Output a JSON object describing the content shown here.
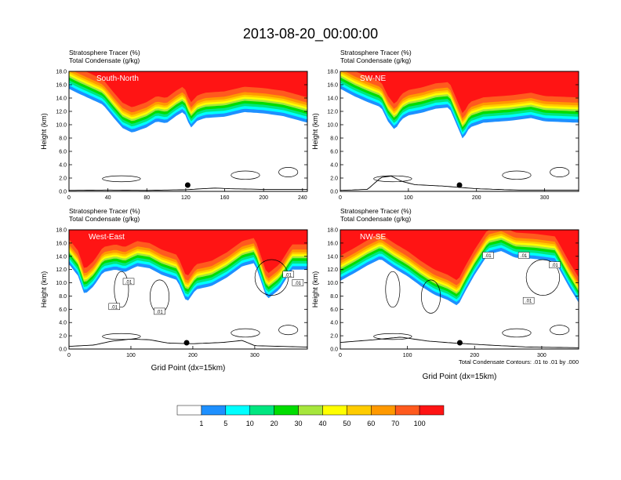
{
  "figure": {
    "title": "2013-08-20_00:00:00",
    "contour_note": "Total Condensate Contours: .01 to .01 by .000"
  },
  "colorbar": {
    "colors": [
      "#ffffff",
      "#1e90ff",
      "#00ffff",
      "#00e680",
      "#00dd00",
      "#a6e63c",
      "#ffff00",
      "#ffcc00",
      "#ff9900",
      "#ff5a1e",
      "#ff1414"
    ],
    "labels": [
      "1",
      "5",
      "10",
      "20",
      "30",
      "40",
      "50",
      "60",
      "70",
      "100"
    ]
  },
  "chart_data": [
    {
      "type": "heatmap",
      "panel": "South-North",
      "label": "South-North",
      "subtitle1": "Stratosphere Tracer   (%)",
      "subtitle2": "Total Condensate   (g/kg)",
      "ylabel": "Height (km)",
      "xlabel": "",
      "xlim": [
        0,
        245
      ],
      "ylim": [
        0,
        18
      ],
      "xticks": [
        0,
        40,
        80,
        120,
        160,
        200,
        240
      ],
      "yticks": [
        "0.0",
        "2.0",
        "4.0",
        "6.0",
        "8.0",
        "10.0",
        "12.0",
        "14.0",
        "16.0",
        "18.0"
      ],
      "tracer_base_km": [
        [
          0,
          15.4
        ],
        [
          8,
          14.8
        ],
        [
          20,
          14.0
        ],
        [
          35,
          13.0
        ],
        [
          45,
          11.2
        ],
        [
          55,
          9.5
        ],
        [
          65,
          8.8
        ],
        [
          80,
          9.6
        ],
        [
          90,
          10.5
        ],
        [
          100,
          10.2
        ],
        [
          110,
          11.3
        ],
        [
          118,
          12.0
        ],
        [
          125,
          9.5
        ],
        [
          132,
          10.6
        ],
        [
          140,
          11.0
        ],
        [
          160,
          11.2
        ],
        [
          180,
          11.9
        ],
        [
          200,
          11.7
        ],
        [
          220,
          11.3
        ],
        [
          245,
          10.3
        ]
      ],
      "terrain_km": [
        [
          0,
          0.15
        ],
        [
          40,
          0.2
        ],
        [
          80,
          0.15
        ],
        [
          120,
          0.25
        ],
        [
          150,
          0.5
        ],
        [
          165,
          0.4
        ],
        [
          200,
          0.3
        ],
        [
          245,
          0.3
        ]
      ],
      "marker_x": 122
    },
    {
      "type": "heatmap",
      "panel": "SW-NE",
      "label": "SW-NE",
      "subtitle1": "Stratosphere Tracer   (%)",
      "subtitle2": "Total Condensate   (g/kg)",
      "ylabel": "Height (km)",
      "xlabel": "",
      "xlim": [
        0,
        350
      ],
      "ylim": [
        0,
        18
      ],
      "xticks": [
        0,
        100,
        200,
        300
      ],
      "yticks": [
        "0.0",
        "2.0",
        "4.0",
        "6.0",
        "8.0",
        "10.0",
        "12.0",
        "14.0",
        "16.0",
        "18.0"
      ],
      "tracer_base_km": [
        [
          0,
          15.4
        ],
        [
          20,
          14.3
        ],
        [
          40,
          13.4
        ],
        [
          60,
          12.6
        ],
        [
          70,
          10.5
        ],
        [
          80,
          9.2
        ],
        [
          90,
          10.8
        ],
        [
          100,
          11.4
        ],
        [
          120,
          11.8
        ],
        [
          140,
          12.4
        ],
        [
          160,
          12.6
        ],
        [
          170,
          10.2
        ],
        [
          180,
          7.8
        ],
        [
          190,
          9.6
        ],
        [
          210,
          10.3
        ],
        [
          250,
          10.6
        ],
        [
          280,
          11.0
        ],
        [
          300,
          10.5
        ],
        [
          350,
          10.3
        ]
      ],
      "terrain_km": [
        [
          0,
          0.15
        ],
        [
          40,
          0.3
        ],
        [
          60,
          2.1
        ],
        [
          75,
          2.3
        ],
        [
          90,
          1.5
        ],
        [
          110,
          1.0
        ],
        [
          150,
          0.8
        ],
        [
          200,
          0.4
        ],
        [
          260,
          0.2
        ],
        [
          350,
          0.2
        ]
      ],
      "marker_x": 175
    },
    {
      "type": "heatmap",
      "panel": "West-East",
      "label": "West-East",
      "subtitle1": "Stratosphere Tracer   (%)",
      "subtitle2": "Total Condensate   (g/kg)",
      "ylabel": "Height (km)",
      "xlabel": "Grid Point (dx=15km)",
      "xlim": [
        0,
        385
      ],
      "ylim": [
        0,
        18
      ],
      "xticks": [
        0,
        100,
        200,
        300
      ],
      "yticks": [
        "0.0",
        "2.0",
        "4.0",
        "6.0",
        "8.0",
        "10.0",
        "12.0",
        "14.0",
        "16.0",
        "18.0"
      ],
      "contour_labels": [
        ".01",
        ".01",
        ".01",
        ".01",
        ".01"
      ],
      "tracer_base_km": [
        [
          0,
          12.8
        ],
        [
          15,
          11.0
        ],
        [
          25,
          8.2
        ],
        [
          40,
          9.5
        ],
        [
          55,
          11.6
        ],
        [
          75,
          12.0
        ],
        [
          90,
          11.6
        ],
        [
          110,
          12.5
        ],
        [
          130,
          12.2
        ],
        [
          150,
          11.2
        ],
        [
          175,
          10.4
        ],
        [
          190,
          7.0
        ],
        [
          205,
          9.0
        ],
        [
          230,
          9.5
        ],
        [
          255,
          10.8
        ],
        [
          280,
          12.5
        ],
        [
          300,
          13.0
        ],
        [
          320,
          7.5
        ],
        [
          340,
          9.0
        ],
        [
          360,
          12.0
        ],
        [
          385,
          12.0
        ]
      ],
      "terrain_km": [
        [
          0,
          0.4
        ],
        [
          40,
          0.6
        ],
        [
          70,
          1.2
        ],
        [
          100,
          1.5
        ],
        [
          130,
          1.4
        ],
        [
          160,
          0.9
        ],
        [
          200,
          0.8
        ],
        [
          250,
          1.0
        ],
        [
          280,
          1.3
        ],
        [
          300,
          0.5
        ],
        [
          385,
          0.3
        ]
      ],
      "marker_x": 190
    },
    {
      "type": "heatmap",
      "panel": "NW-SE",
      "label": "NW-SE",
      "subtitle1": "Stratosphere Tracer   (%)",
      "subtitle2": "Total Condensate   (g/kg)",
      "ylabel": "Height (km)",
      "xlabel": "Grid Point (dx=15km)",
      "xlim": [
        0,
        355
      ],
      "ylim": [
        0,
        18
      ],
      "xticks": [
        0,
        100,
        200,
        300
      ],
      "yticks": [
        "0.0",
        "2.0",
        "4.0",
        "6.0",
        "8.0",
        "10.0",
        "12.0",
        "14.0",
        "16.0",
        "18.0"
      ],
      "contour_labels": [
        ".01",
        ".01",
        ".01",
        ".01"
      ],
      "tracer_base_km": [
        [
          0,
          10.3
        ],
        [
          20,
          11.4
        ],
        [
          40,
          12.6
        ],
        [
          60,
          13.6
        ],
        [
          80,
          12.2
        ],
        [
          100,
          11.0
        ],
        [
          120,
          9.5
        ],
        [
          140,
          8.2
        ],
        [
          160,
          7.4
        ],
        [
          175,
          6.5
        ],
        [
          185,
          8.5
        ],
        [
          200,
          11.2
        ],
        [
          220,
          14.3
        ],
        [
          240,
          14.8
        ],
        [
          260,
          13.8
        ],
        [
          290,
          13.6
        ],
        [
          320,
          13.2
        ],
        [
          340,
          9.5
        ],
        [
          355,
          7.0
        ]
      ],
      "terrain_km": [
        [
          0,
          1.0
        ],
        [
          50,
          1.4
        ],
        [
          90,
          1.8
        ],
        [
          130,
          1.2
        ],
        [
          170,
          0.9
        ],
        [
          220,
          0.6
        ],
        [
          280,
          0.3
        ],
        [
          355,
          0.2
        ]
      ],
      "marker_x": 178
    }
  ]
}
